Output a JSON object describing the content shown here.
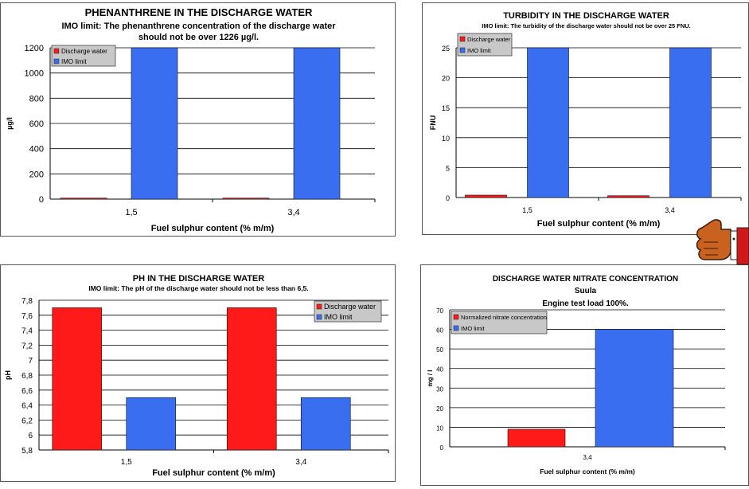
{
  "colors": {
    "discharge": "#ff1a1a",
    "imo": "#3a6ef0",
    "grid": "#000000"
  },
  "charts": [
    {
      "type": "bar",
      "title_lines": [
        "PHENANTHRENE IN THE DISCHARGE WATER",
        "IMO limit: The phenanthrene concentration of the discharge water",
        "should not be over 1226 µg/l."
      ],
      "xlabel": "Fuel sulphur content (% m/m)",
      "ylabel": "µg/l",
      "categories": [
        "1,5",
        "3,4"
      ],
      "ylim": [
        0,
        1200
      ],
      "yticks": [
        "0",
        "200",
        "400",
        "600",
        "800",
        "1000",
        "1200"
      ],
      "series": [
        {
          "name": "Discharge water",
          "values": [
            8,
            8
          ]
        },
        {
          "name": "IMO limit",
          "values": [
            1226,
            1226
          ]
        }
      ],
      "legend": "top-left"
    },
    {
      "type": "bar",
      "title_lines": [
        "TURBIDITY IN THE DISCHARGE WATER",
        "IMO limit: The turbidity of the discharge water should not be over 25 FNU."
      ],
      "xlabel": "Fuel sulphur content (% m/m)",
      "ylabel": "FNU",
      "categories": [
        "1,5",
        "3,4"
      ],
      "ylim": [
        0,
        25
      ],
      "yticks": [
        "0",
        "5",
        "10",
        "15",
        "20",
        "25"
      ],
      "series": [
        {
          "name": "Discharge water",
          "values": [
            0.4,
            0.3
          ]
        },
        {
          "name": "IMO limit",
          "values": [
            25,
            25
          ]
        }
      ],
      "legend": "top-left"
    },
    {
      "type": "bar",
      "title_lines": [
        "PH IN THE DISCHARGE WATER",
        "IMO limit: The pH of the discharge water should not be less than 6,5."
      ],
      "xlabel": "Fuel sulphur content (% m/m)",
      "ylabel": "pH",
      "categories": [
        "1,5",
        "3,4"
      ],
      "ylim": [
        5.8,
        7.8
      ],
      "yticks": [
        "5,8",
        "6",
        "6,2",
        "6,4",
        "6,6",
        "6,8",
        "7",
        "7,2",
        "7,4",
        "7,6",
        "7,8"
      ],
      "series": [
        {
          "name": "Discharge water",
          "values": [
            7.7,
            7.7
          ]
        },
        {
          "name": "IMO limit",
          "values": [
            6.5,
            6.5
          ]
        }
      ],
      "legend": "top-right"
    },
    {
      "type": "bar",
      "title_lines": [
        "DISCHARGE WATER NITRATE CONCENTRATION",
        "Suula",
        "Engine test load 100%."
      ],
      "xlabel": "Fuel sulphur content (% m/m)",
      "ylabel": "mg / l",
      "categories": [
        "3,4"
      ],
      "ylim": [
        0,
        70
      ],
      "yticks": [
        "0",
        "10",
        "20",
        "30",
        "40",
        "50",
        "60",
        "70"
      ],
      "series": [
        {
          "name": "Normalized nitrate concentration",
          "values": [
            9
          ]
        },
        {
          "name": "IMO limit",
          "values": [
            60
          ]
        }
      ],
      "legend": "top-left"
    }
  ],
  "chart_data": [
    {
      "type": "bar",
      "title": "PHENANTHRENE IN THE DISCHARGE WATER",
      "categories": [
        "1,5",
        "3,4"
      ],
      "series": [
        {
          "name": "Discharge water",
          "values": [
            8,
            8
          ]
        },
        {
          "name": "IMO limit",
          "values": [
            1226,
            1226
          ]
        }
      ],
      "xlabel": "Fuel sulphur content (% m/m)",
      "ylabel": "µg/l",
      "ylim": [
        0,
        1200
      ]
    },
    {
      "type": "bar",
      "title": "TURBIDITY IN THE DISCHARGE WATER",
      "categories": [
        "1,5",
        "3,4"
      ],
      "series": [
        {
          "name": "Discharge water",
          "values": [
            0.4,
            0.3
          ]
        },
        {
          "name": "IMO limit",
          "values": [
            25,
            25
          ]
        }
      ],
      "xlabel": "Fuel sulphur content (% m/m)",
      "ylabel": "FNU",
      "ylim": [
        0,
        25
      ]
    },
    {
      "type": "bar",
      "title": "PH IN THE DISCHARGE WATER",
      "categories": [
        "1,5",
        "3,4"
      ],
      "series": [
        {
          "name": "Discharge water",
          "values": [
            7.7,
            7.7
          ]
        },
        {
          "name": "IMO limit",
          "values": [
            6.5,
            6.5
          ]
        }
      ],
      "xlabel": "Fuel sulphur content (% m/m)",
      "ylabel": "pH",
      "ylim": [
        5.8,
        7.8
      ]
    },
    {
      "type": "bar",
      "title": "DISCHARGE WATER NITRATE CONCENTRATION",
      "categories": [
        "3,4"
      ],
      "series": [
        {
          "name": "Normalized nitrate concentration",
          "values": [
            9
          ]
        },
        {
          "name": "IMO limit",
          "values": [
            60
          ]
        }
      ],
      "xlabel": "Fuel sulphur content (% m/m)",
      "ylabel": "mg / l",
      "ylim": [
        0,
        70
      ]
    }
  ]
}
